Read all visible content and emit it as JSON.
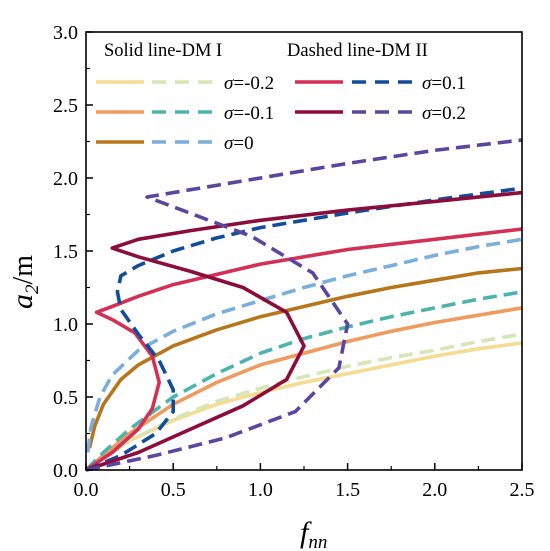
{
  "chart_data": {
    "type": "line",
    "xlabel": {
      "main": "f",
      "sub": "nn"
    },
    "ylabel": {
      "main": "a",
      "sub": "2",
      "unit": "/m"
    },
    "xlim": [
      0.0,
      2.5
    ],
    "ylim": [
      0.0,
      3.0
    ],
    "xticks": [
      "0.0",
      "0.5",
      "1.0",
      "1.5",
      "2.0",
      "2.5"
    ],
    "yticks": [
      "0.0",
      "0.5",
      "1.0",
      "1.5",
      "2.0",
      "2.5",
      "3.0"
    ],
    "grid": false,
    "legend_position": "top",
    "legend_headers": [
      "Solid line-DM I",
      "Dashed line-DM II"
    ],
    "legend_entries": [
      {
        "label": "=-0.2",
        "solid_color": "#f5dc92",
        "dashed_color": "#d6e6b5"
      },
      {
        "label": "=-0.1",
        "solid_color": "#ef9a5e",
        "dashed_color": "#4db3ad"
      },
      {
        "label": "=0",
        "solid_color": "#b8761a",
        "dashed_color": "#7aaedd"
      },
      {
        "label": "=0.1",
        "solid_color": "#d42f55",
        "dashed_color": "#124d99"
      },
      {
        "label": "=0.2",
        "solid_color": "#8c0c3c",
        "dashed_color": "#5a46a0"
      }
    ],
    "legend_symbol": "σ",
    "series": [
      {
        "model": "DM I",
        "sigma": -0.2,
        "style": "solid",
        "color": "#f5dc92",
        "points": [
          [
            0.0,
            0.0
          ],
          [
            0.1,
            0.08
          ],
          [
            0.25,
            0.2
          ],
          [
            0.5,
            0.34
          ],
          [
            0.75,
            0.45
          ],
          [
            1.0,
            0.53
          ],
          [
            1.25,
            0.6
          ],
          [
            1.5,
            0.66
          ],
          [
            1.75,
            0.72
          ],
          [
            2.0,
            0.78
          ],
          [
            2.25,
            0.83
          ],
          [
            2.5,
            0.87
          ]
        ]
      },
      {
        "model": "DM II",
        "sigma": -0.2,
        "style": "dashed",
        "color": "#d6e6b5",
        "points": [
          [
            0.0,
            0.0
          ],
          [
            0.1,
            0.08
          ],
          [
            0.25,
            0.2
          ],
          [
            0.5,
            0.35
          ],
          [
            0.75,
            0.47
          ],
          [
            1.0,
            0.56
          ],
          [
            1.25,
            0.64
          ],
          [
            1.5,
            0.71
          ],
          [
            1.75,
            0.77
          ],
          [
            2.0,
            0.82
          ],
          [
            2.25,
            0.88
          ],
          [
            2.5,
            0.93
          ]
        ]
      },
      {
        "model": "DM I",
        "sigma": -0.1,
        "style": "solid",
        "color": "#ef9a5e",
        "points": [
          [
            0.0,
            0.0
          ],
          [
            0.1,
            0.1
          ],
          [
            0.25,
            0.25
          ],
          [
            0.5,
            0.45
          ],
          [
            0.75,
            0.6
          ],
          [
            1.0,
            0.72
          ],
          [
            1.25,
            0.8
          ],
          [
            1.5,
            0.88
          ],
          [
            1.75,
            0.95
          ],
          [
            2.0,
            1.01
          ],
          [
            2.25,
            1.06
          ],
          [
            2.5,
            1.11
          ]
        ]
      },
      {
        "model": "DM II",
        "sigma": -0.1,
        "style": "dashed",
        "color": "#4db3ad",
        "points": [
          [
            0.0,
            0.0
          ],
          [
            0.1,
            0.12
          ],
          [
            0.25,
            0.28
          ],
          [
            0.5,
            0.5
          ],
          [
            0.75,
            0.66
          ],
          [
            1.0,
            0.8
          ],
          [
            1.25,
            0.9
          ],
          [
            1.5,
            0.98
          ],
          [
            1.75,
            1.05
          ],
          [
            2.0,
            1.11
          ],
          [
            2.25,
            1.17
          ],
          [
            2.5,
            1.22
          ]
        ]
      },
      {
        "model": "DM I",
        "sigma": 0.0,
        "style": "solid",
        "color": "#b8761a",
        "points": [
          [
            0.02,
            0.15
          ],
          [
            0.05,
            0.3
          ],
          [
            0.1,
            0.45
          ],
          [
            0.2,
            0.62
          ],
          [
            0.3,
            0.72
          ],
          [
            0.5,
            0.85
          ],
          [
            0.75,
            0.96
          ],
          [
            1.0,
            1.05
          ],
          [
            1.25,
            1.12
          ],
          [
            1.5,
            1.19
          ],
          [
            1.75,
            1.25
          ],
          [
            2.0,
            1.3
          ],
          [
            2.25,
            1.35
          ],
          [
            2.5,
            1.38
          ]
        ]
      },
      {
        "model": "DM II",
        "sigma": 0.0,
        "style": "dashed",
        "color": "#7aaedd",
        "points": [
          [
            0.01,
            0.12
          ],
          [
            0.03,
            0.3
          ],
          [
            0.08,
            0.5
          ],
          [
            0.15,
            0.65
          ],
          [
            0.3,
            0.82
          ],
          [
            0.5,
            0.95
          ],
          [
            0.75,
            1.07
          ],
          [
            1.0,
            1.16
          ],
          [
            1.25,
            1.25
          ],
          [
            1.5,
            1.33
          ],
          [
            1.75,
            1.4
          ],
          [
            2.0,
            1.47
          ],
          [
            2.25,
            1.53
          ],
          [
            2.5,
            1.58
          ]
        ]
      },
      {
        "model": "DM I",
        "sigma": 0.1,
        "style": "solid",
        "color": "#d42f55",
        "points": [
          [
            0.0,
            0.0
          ],
          [
            0.15,
            0.12
          ],
          [
            0.3,
            0.28
          ],
          [
            0.38,
            0.42
          ],
          [
            0.42,
            0.6
          ],
          [
            0.38,
            0.78
          ],
          [
            0.28,
            0.94
          ],
          [
            0.15,
            1.03
          ],
          [
            0.06,
            1.08
          ],
          [
            0.15,
            1.12
          ],
          [
            0.3,
            1.19
          ],
          [
            0.5,
            1.27
          ],
          [
            0.75,
            1.34
          ],
          [
            1.0,
            1.41
          ],
          [
            1.5,
            1.51
          ],
          [
            2.0,
            1.58
          ],
          [
            2.5,
            1.65
          ]
        ]
      },
      {
        "model": "DM II",
        "sigma": 0.1,
        "style": "dashed",
        "color": "#124d99",
        "points": [
          [
            0.0,
            0.0
          ],
          [
            0.2,
            0.1
          ],
          [
            0.4,
            0.25
          ],
          [
            0.5,
            0.4
          ],
          [
            0.5,
            0.55
          ],
          [
            0.42,
            0.75
          ],
          [
            0.3,
            0.93
          ],
          [
            0.2,
            1.1
          ],
          [
            0.18,
            1.22
          ],
          [
            0.2,
            1.33
          ],
          [
            0.3,
            1.4
          ],
          [
            0.5,
            1.5
          ],
          [
            0.75,
            1.59
          ],
          [
            1.0,
            1.66
          ],
          [
            1.5,
            1.76
          ],
          [
            2.0,
            1.85
          ],
          [
            2.5,
            1.93
          ]
        ]
      },
      {
        "model": "DM I",
        "sigma": 0.2,
        "style": "solid",
        "color": "#8c0c3c",
        "points": [
          [
            0.0,
            0.0
          ],
          [
            0.3,
            0.12
          ],
          [
            0.6,
            0.28
          ],
          [
            0.9,
            0.44
          ],
          [
            1.15,
            0.62
          ],
          [
            1.25,
            0.85
          ],
          [
            1.15,
            1.08
          ],
          [
            0.9,
            1.25
          ],
          [
            0.6,
            1.36
          ],
          [
            0.3,
            1.46
          ],
          [
            0.15,
            1.52
          ],
          [
            0.3,
            1.58
          ],
          [
            0.6,
            1.64
          ],
          [
            1.0,
            1.71
          ],
          [
            1.5,
            1.78
          ],
          [
            2.0,
            1.84
          ],
          [
            2.5,
            1.9
          ]
        ]
      },
      {
        "model": "DM II",
        "sigma": 0.2,
        "style": "dashed",
        "color": "#5a46a0",
        "points": [
          [
            0.0,
            0.0
          ],
          [
            0.4,
            0.1
          ],
          [
            0.8,
            0.22
          ],
          [
            1.2,
            0.4
          ],
          [
            1.45,
            0.7
          ],
          [
            1.5,
            1.0
          ],
          [
            1.3,
            1.35
          ],
          [
            0.95,
            1.6
          ],
          [
            0.55,
            1.78
          ],
          [
            0.35,
            1.87
          ],
          [
            0.6,
            1.92
          ],
          [
            1.0,
            2.0
          ],
          [
            1.5,
            2.1
          ],
          [
            2.0,
            2.19
          ],
          [
            2.5,
            2.26
          ]
        ]
      }
    ]
  }
}
